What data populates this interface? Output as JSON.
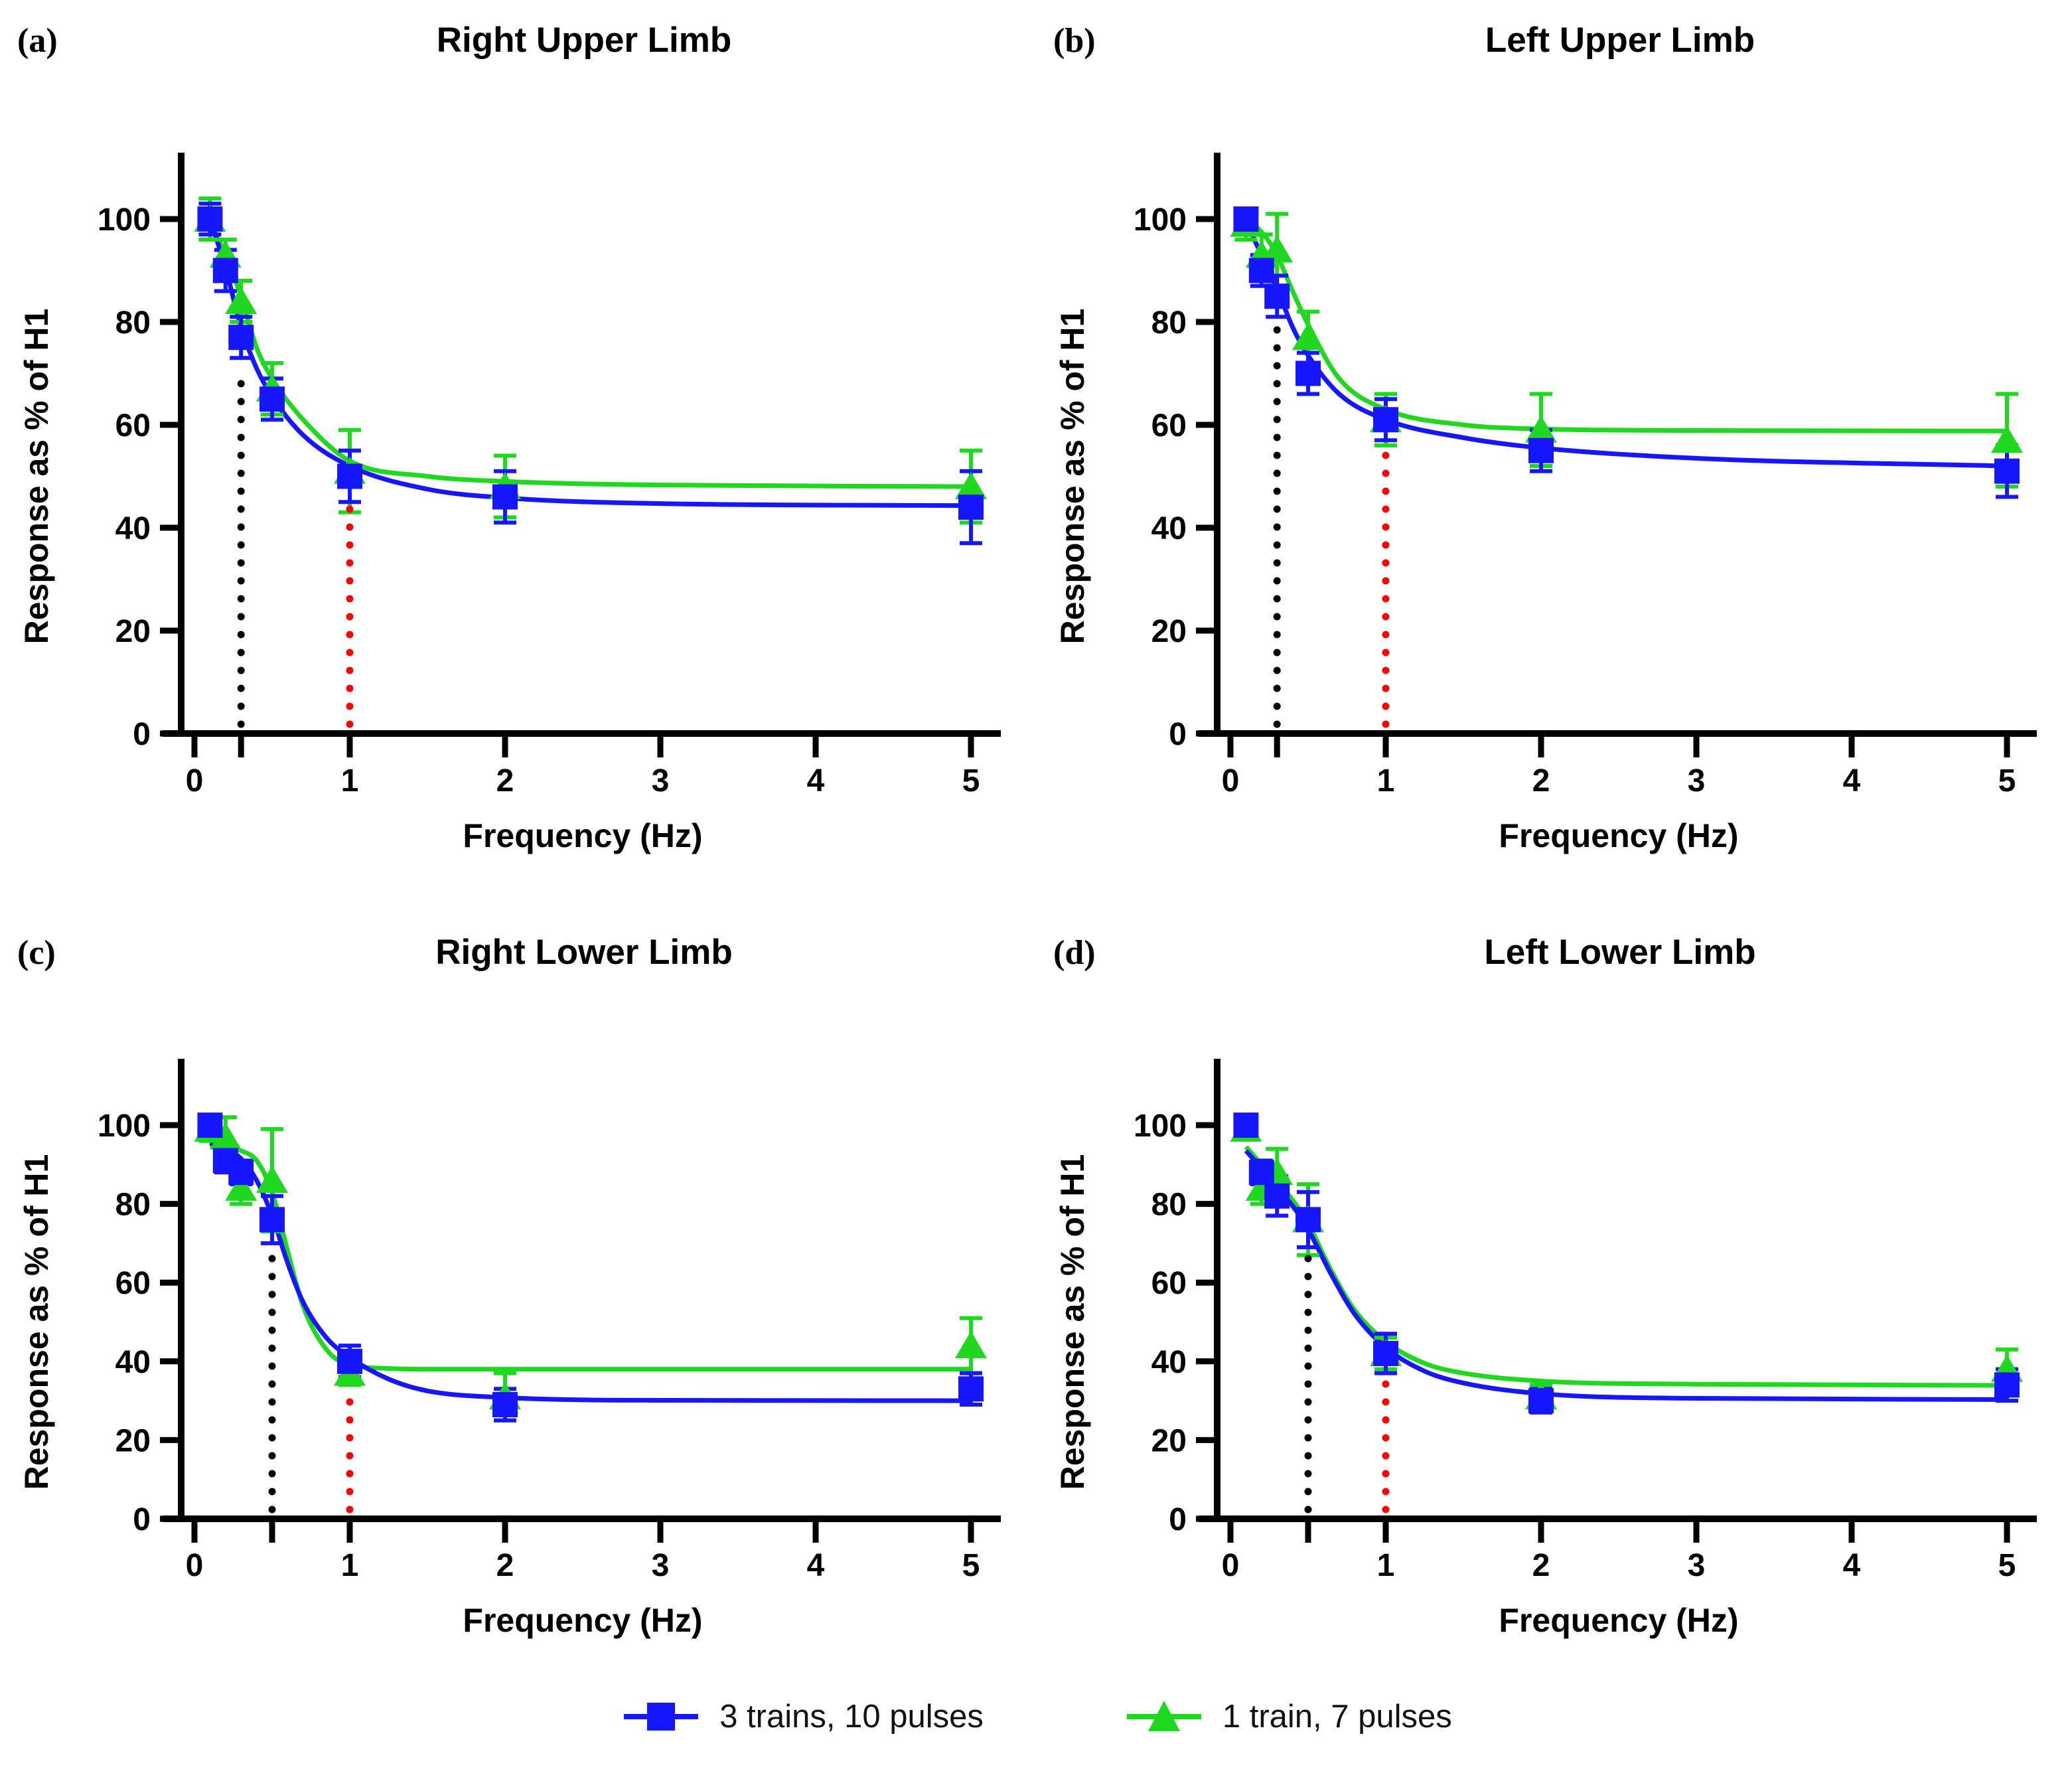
{
  "legend": {
    "entries": [
      {
        "label": "3 trains, 10 pulses",
        "color": "#1717ff",
        "marker": "square"
      },
      {
        "label": "1 train, 7 pulses",
        "color": "#1fd81f",
        "marker": "triangle"
      }
    ]
  },
  "chart_data": [
    {
      "type": "line",
      "panel_label": "(a)",
      "title": "Right Upper Limb",
      "xlabel": "Frequency (Hz)",
      "ylabel": "Response as % of H1",
      "xlim": [
        0,
        5
      ],
      "ylim": [
        0,
        110
      ],
      "xticks": [
        0,
        1,
        2,
        3,
        4,
        5
      ],
      "yticks": [
        0,
        20,
        40,
        60,
        80,
        100
      ],
      "extra_xticks": [
        0.3
      ],
      "x": [
        0.1,
        0.2,
        0.3,
        0.5,
        1,
        2,
        5
      ],
      "series": [
        {
          "name": "3 trains, 10 pulses",
          "color": "#1717ff",
          "marker": "square",
          "values": [
            100,
            90,
            77,
            65,
            50,
            46,
            44
          ],
          "errors": [
            3,
            4,
            4,
            4,
            5,
            5,
            7
          ],
          "curve": [
            [
              0.1,
              100
            ],
            [
              0.2,
              90.5
            ],
            [
              0.3,
              79
            ],
            [
              0.4,
              71
            ],
            [
              0.5,
              65.5
            ],
            [
              0.7,
              58
            ],
            [
              1,
              52
            ],
            [
              1.5,
              47.5
            ],
            [
              2,
              45.8
            ],
            [
              3,
              44.7
            ],
            [
              5,
              44.3
            ]
          ]
        },
        {
          "name": "1 train, 7 pulses",
          "color": "#1fd81f",
          "marker": "triangle",
          "values": [
            100,
            93,
            84,
            67,
            51,
            48,
            48
          ],
          "errors": [
            4,
            3,
            4,
            5,
            8,
            6,
            7
          ],
          "curve": [
            [
              0.1,
              99.5
            ],
            [
              0.2,
              93
            ],
            [
              0.3,
              85
            ],
            [
              0.4,
              75
            ],
            [
              0.5,
              69
            ],
            [
              0.7,
              61
            ],
            [
              1,
              53
            ],
            [
              1.5,
              50
            ],
            [
              2,
              49
            ],
            [
              3,
              48.3
            ],
            [
              5,
              48
            ]
          ]
        }
      ],
      "dotted_lines": [
        {
          "x": 0.3,
          "y_top": 71,
          "color": "#000000"
        },
        {
          "x": 1.0,
          "y_top": 45,
          "color": "#ff0000"
        }
      ]
    },
    {
      "type": "line",
      "panel_label": "(b)",
      "title": "Left Upper Limb",
      "xlabel": "Frequency (Hz)",
      "ylabel": "Response as % of H1",
      "xlim": [
        0,
        5
      ],
      "ylim": [
        0,
        110
      ],
      "xticks": [
        0,
        1,
        2,
        3,
        4,
        5
      ],
      "yticks": [
        0,
        20,
        40,
        60,
        80,
        100
      ],
      "extra_xticks": [
        0.3
      ],
      "x": [
        0.1,
        0.2,
        0.3,
        0.5,
        1,
        2,
        5
      ],
      "series": [
        {
          "name": "3 trains, 10 pulses",
          "color": "#1717ff",
          "marker": "square",
          "values": [
            100,
            90,
            85,
            70,
            61,
            55,
            51
          ],
          "errors": [
            2,
            3,
            4,
            4,
            4,
            4,
            5
          ],
          "curve": [
            [
              0.1,
              99.5
            ],
            [
              0.2,
              93
            ],
            [
              0.3,
              86.5
            ],
            [
              0.4,
              79
            ],
            [
              0.5,
              73.5
            ],
            [
              0.7,
              66
            ],
            [
              1,
              61
            ],
            [
              1.5,
              57.5
            ],
            [
              2,
              55.5
            ],
            [
              3,
              53.5
            ],
            [
              5,
              52
            ]
          ]
        },
        {
          "name": "1 train, 7 pulses",
          "color": "#1fd81f",
          "marker": "triangle",
          "values": [
            99,
            93,
            94,
            77,
            61,
            59,
            57
          ],
          "errors": [
            3,
            4,
            7,
            5,
            5,
            7,
            9
          ],
          "curve": [
            [
              0.1,
              100
            ],
            [
              0.2,
              97.5
            ],
            [
              0.3,
              93
            ],
            [
              0.4,
              86
            ],
            [
              0.5,
              79.5
            ],
            [
              0.7,
              69
            ],
            [
              1,
              63
            ],
            [
              1.5,
              60
            ],
            [
              2,
              59.2
            ],
            [
              3,
              58.9
            ],
            [
              5,
              58.8
            ]
          ]
        }
      ],
      "dotted_lines": [
        {
          "x": 0.3,
          "y_top": 79,
          "color": "#000000"
        },
        {
          "x": 1.0,
          "y_top": 56,
          "color": "#ff0000"
        }
      ]
    },
    {
      "type": "line",
      "panel_label": "(c)",
      "title": "Right Lower Limb",
      "xlabel": "Frequency (Hz)",
      "ylabel": "Response as % of H1",
      "xlim": [
        0,
        5
      ],
      "ylim": [
        0,
        110
      ],
      "xticks": [
        0,
        1,
        2,
        3,
        4,
        5
      ],
      "yticks": [
        0,
        20,
        40,
        60,
        80,
        100
      ],
      "extra_xticks": [
        0.5
      ],
      "x": [
        0.1,
        0.2,
        0.3,
        0.5,
        1,
        2,
        5
      ],
      "series": [
        {
          "name": "3 trains, 10 pulses",
          "color": "#1717ff",
          "marker": "square",
          "values": [
            100,
            91,
            88,
            76,
            40,
            29,
            33
          ],
          "errors": [
            2,
            3,
            3,
            6,
            4,
            4,
            4
          ],
          "curve": [
            [
              0.1,
              95.5
            ],
            [
              0.2,
              94
            ],
            [
              0.3,
              91.5
            ],
            [
              0.4,
              86
            ],
            [
              0.5,
              77
            ],
            [
              0.6,
              65
            ],
            [
              0.7,
              55
            ],
            [
              0.85,
              46
            ],
            [
              1,
              41
            ],
            [
              1.25,
              35.5
            ],
            [
              1.5,
              32.5
            ],
            [
              2,
              30.8
            ],
            [
              3,
              30.1
            ],
            [
              5,
              30
            ]
          ]
        },
        {
          "name": "1 train, 7 pulses",
          "color": "#1fd81f",
          "marker": "triangle",
          "values": [
            99,
            97,
            84,
            86,
            37,
            31,
            44
          ],
          "errors": [
            3,
            5,
            4,
            13,
            3,
            6,
            7
          ],
          "curve": [
            [
              0.1,
              95
            ],
            [
              0.2,
              94.5
            ],
            [
              0.3,
              93.5
            ],
            [
              0.4,
              91
            ],
            [
              0.5,
              83
            ],
            [
              0.6,
              68
            ],
            [
              0.7,
              54
            ],
            [
              0.85,
              43
            ],
            [
              1,
              39
            ],
            [
              1.25,
              38.2
            ],
            [
              1.5,
              38
            ],
            [
              2,
              38
            ],
            [
              3,
              38
            ],
            [
              5,
              38
            ]
          ]
        }
      ],
      "dotted_lines": [
        {
          "x": 0.5,
          "y_top": 70,
          "color": "#000000"
        },
        {
          "x": 1.0,
          "y_top": 34,
          "color": "#ff0000"
        }
      ]
    },
    {
      "type": "line",
      "panel_label": "(d)",
      "title": "Left Lower Limb",
      "xlabel": "Frequency (Hz)",
      "ylabel": "Response as % of H1",
      "xlim": [
        0,
        5
      ],
      "ylim": [
        0,
        110
      ],
      "xticks": [
        0,
        1,
        2,
        3,
        4,
        5
      ],
      "yticks": [
        0,
        20,
        40,
        60,
        80,
        100
      ],
      "extra_xticks": [
        0.5
      ],
      "x": [
        0.1,
        0.2,
        0.3,
        0.5,
        1,
        2,
        5
      ],
      "series": [
        {
          "name": "3 trains, 10 pulses",
          "color": "#1717ff",
          "marker": "square",
          "values": [
            100,
            88,
            82,
            76,
            42,
            30,
            34
          ],
          "errors": [
            1,
            3,
            5,
            7,
            5,
            3,
            4
          ],
          "curve": [
            [
              0.1,
              93.5
            ],
            [
              0.2,
              89
            ],
            [
              0.3,
              84
            ],
            [
              0.4,
              79.5
            ],
            [
              0.5,
              73.5
            ],
            [
              0.65,
              62
            ],
            [
              0.8,
              52
            ],
            [
              1,
              43.5
            ],
            [
              1.25,
              37.5
            ],
            [
              1.5,
              34.5
            ],
            [
              2,
              31.8
            ],
            [
              3,
              30.6
            ],
            [
              5,
              30.3
            ]
          ]
        },
        {
          "name": "1 train, 7 pulses",
          "color": "#1fd81f",
          "marker": "triangle",
          "values": [
            99,
            84,
            88,
            76,
            42,
            31,
            38
          ],
          "errors": [
            2,
            4,
            6,
            9,
            4,
            3,
            5
          ],
          "curve": [
            [
              0.1,
              94.5
            ],
            [
              0.2,
              90
            ],
            [
              0.3,
              85.5
            ],
            [
              0.4,
              81
            ],
            [
              0.5,
              75
            ],
            [
              0.65,
              63
            ],
            [
              0.8,
              53
            ],
            [
              1,
              45
            ],
            [
              1.25,
              39.5
            ],
            [
              1.5,
              37
            ],
            [
              2,
              35
            ],
            [
              3,
              34.2
            ],
            [
              5,
              33.9
            ]
          ]
        }
      ],
      "dotted_lines": [
        {
          "x": 0.5,
          "y_top": 69,
          "color": "#000000"
        },
        {
          "x": 1.0,
          "y_top": 36,
          "color": "#ff0000"
        }
      ]
    }
  ]
}
